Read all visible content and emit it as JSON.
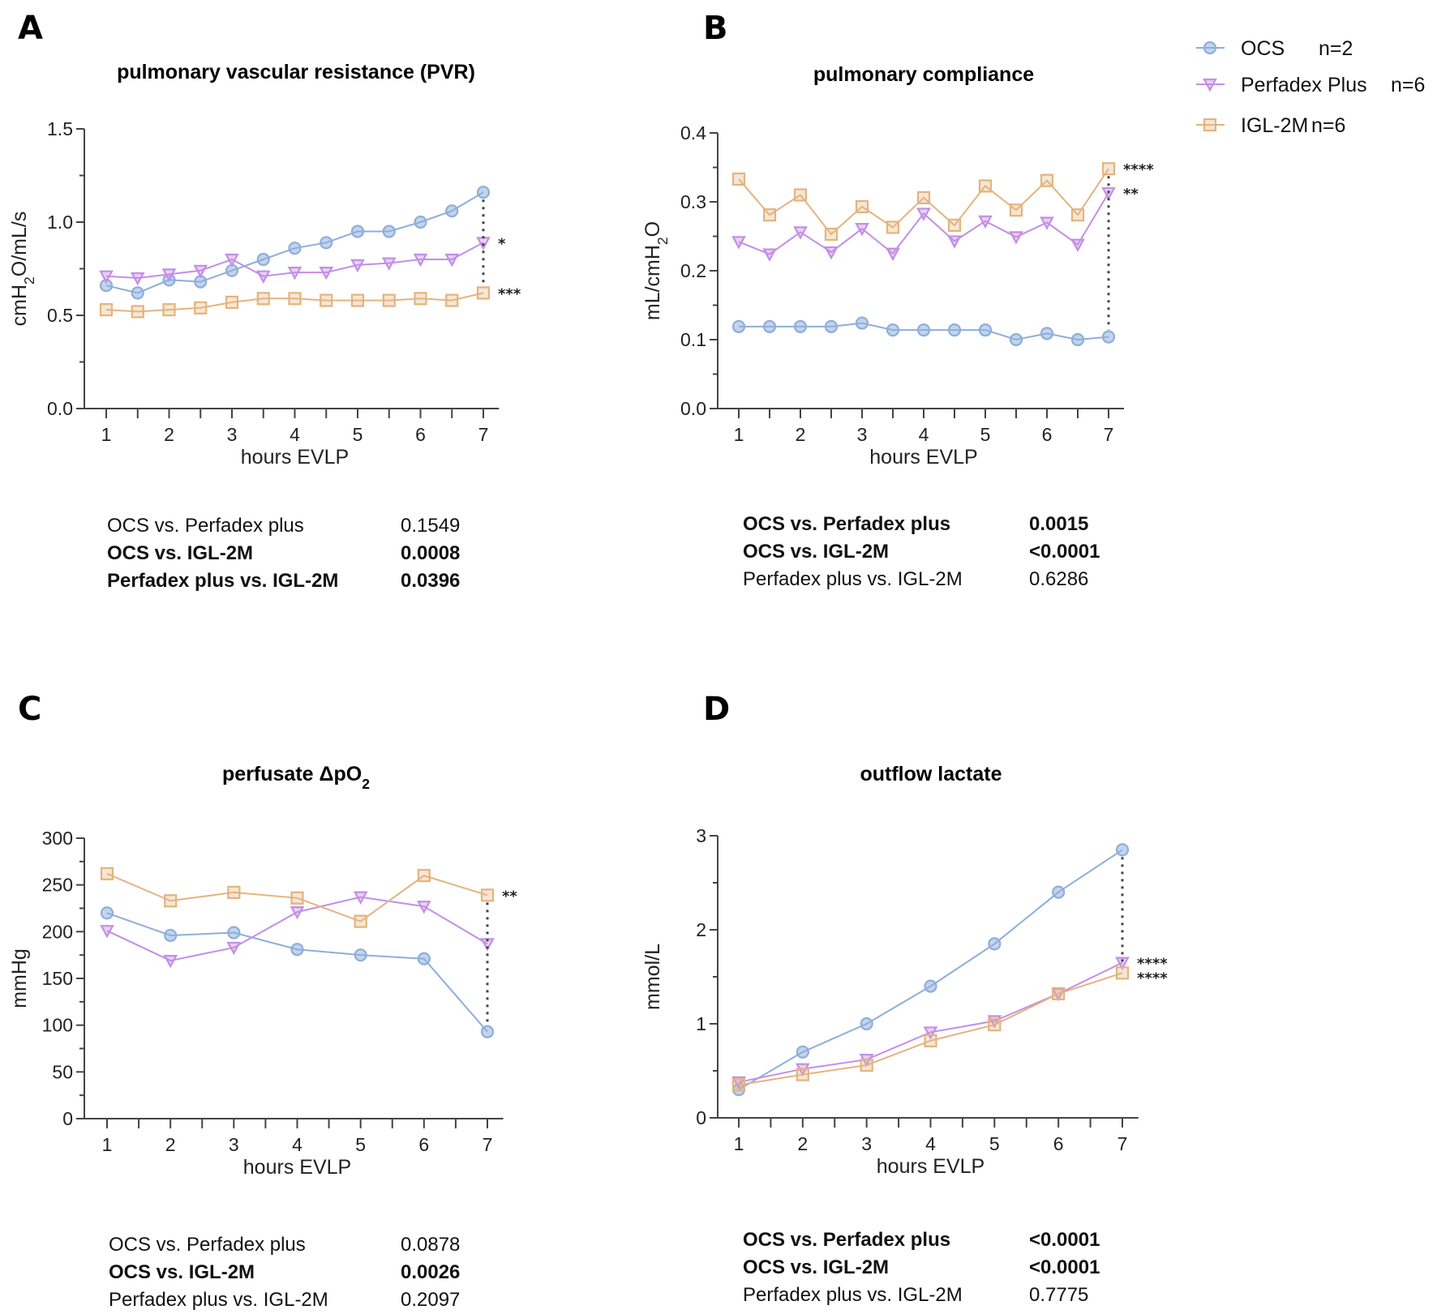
{
  "legend": [
    {
      "name": "OCS",
      "n": "n=2",
      "marker": "circle",
      "color": "#8eaedb"
    },
    {
      "name": "Perfadex Plus",
      "n": "n=6",
      "marker": "triangle-down",
      "color": "#c48ee6"
    },
    {
      "name": "IGL-2M",
      "n": "n=6",
      "marker": "square",
      "color": "#e3b47f"
    }
  ],
  "chart_data": [
    {
      "panel": "A",
      "type": "line",
      "title": "pulmonary vascular resistance (PVR)",
      "xlabel": "hours EVLP",
      "ylabel": "cmH2O/mL/s",
      "ylim": [
        0,
        1.5
      ],
      "yticks": [
        "0.0",
        "0.5",
        "1.0",
        "1.5"
      ],
      "yticks_values": [
        0,
        0.5,
        1.0,
        1.5
      ],
      "xlim": [
        0.75,
        7.25
      ],
      "xticks": [
        "1",
        "2",
        "3",
        "4",
        "5",
        "6",
        "7"
      ],
      "x": [
        1,
        1.5,
        2,
        2.5,
        3,
        3.5,
        4,
        4.5,
        5,
        5.5,
        6,
        6.5,
        7
      ],
      "series": [
        {
          "name": "OCS",
          "values": [
            0.66,
            0.62,
            0.69,
            0.68,
            0.74,
            0.8,
            0.86,
            0.89,
            0.95,
            0.95,
            1.0,
            1.06,
            1.16
          ]
        },
        {
          "name": "Perfadex Plus",
          "values": [
            0.71,
            0.7,
            0.72,
            0.74,
            0.8,
            0.71,
            0.73,
            0.73,
            0.77,
            0.78,
            0.8,
            0.8,
            0.89
          ]
        },
        {
          "name": "IGL-2M",
          "values": [
            0.53,
            0.52,
            0.53,
            0.54,
            0.57,
            0.59,
            0.59,
            0.58,
            0.58,
            0.58,
            0.59,
            0.58,
            0.62
          ]
        }
      ],
      "significance": [
        {
          "series": "Perfadex Plus",
          "label": "*"
        },
        {
          "series": "IGL-2M",
          "label": "***"
        }
      ],
      "stats": [
        {
          "comparison": "OCS vs. Perfadex plus",
          "p": "0.1549",
          "bold": false
        },
        {
          "comparison": "OCS vs. IGL-2M",
          "p": "0.0008",
          "bold": true
        },
        {
          "comparison": "Perfadex plus vs. IGL-2M",
          "p": "0.0396",
          "bold": true
        }
      ]
    },
    {
      "panel": "B",
      "type": "line",
      "title": "pulmonary compliance",
      "xlabel": "hours EVLP",
      "ylabel": "mL/cmH2O",
      "ylim": [
        0,
        0.4
      ],
      "yticks": [
        "0.0",
        "0.1",
        "0.2",
        "0.3",
        "0.4"
      ],
      "yticks_values": [
        0,
        0.1,
        0.2,
        0.3,
        0.4
      ],
      "xlim": [
        0.75,
        7.25
      ],
      "xticks": [
        "1",
        "2",
        "3",
        "4",
        "5",
        "6",
        "7"
      ],
      "x": [
        1,
        1.5,
        2,
        2.5,
        3,
        3.5,
        4,
        4.5,
        5,
        5.5,
        6,
        6.5,
        7
      ],
      "series": [
        {
          "name": "OCS",
          "values": [
            0.119,
            0.119,
            0.119,
            0.119,
            0.124,
            0.114,
            0.114,
            0.114,
            0.114,
            0.1,
            0.109,
            0.1,
            0.104
          ]
        },
        {
          "name": "Perfadex Plus",
          "values": [
            0.242,
            0.224,
            0.256,
            0.227,
            0.261,
            0.225,
            0.283,
            0.243,
            0.272,
            0.249,
            0.27,
            0.238,
            0.313
          ]
        },
        {
          "name": "IGL-2M",
          "values": [
            0.333,
            0.281,
            0.31,
            0.253,
            0.293,
            0.263,
            0.306,
            0.266,
            0.323,
            0.288,
            0.331,
            0.281,
            0.348
          ]
        }
      ],
      "significance": [
        {
          "series": "IGL-2M",
          "label": "****"
        },
        {
          "series": "Perfadex Plus",
          "label": "**"
        }
      ],
      "stats": [
        {
          "comparison": "OCS vs. Perfadex plus",
          "p": "0.0015",
          "bold": true
        },
        {
          "comparison": "OCS vs. IGL-2M",
          "p": "<0.0001",
          "bold": true
        },
        {
          "comparison": "Perfadex plus vs. IGL-2M",
          "p": "0.6286",
          "bold": false
        }
      ]
    },
    {
      "panel": "C",
      "type": "line",
      "title": "perfusate ΔpO2",
      "xlabel": "hours EVLP",
      "ylabel": "mmHg",
      "ylim": [
        0,
        300
      ],
      "yticks": [
        "0",
        "50",
        "100",
        "150",
        "200",
        "250",
        "300"
      ],
      "yticks_values": [
        0,
        50,
        100,
        150,
        200,
        250,
        300
      ],
      "xlim": [
        0.75,
        7.25
      ],
      "xticks": [
        "1",
        "2",
        "3",
        "4",
        "5",
        "6",
        "7"
      ],
      "x": [
        1,
        2,
        3,
        4,
        5,
        6,
        7
      ],
      "series": [
        {
          "name": "OCS",
          "values": [
            220,
            196,
            199,
            181,
            175,
            171,
            93
          ]
        },
        {
          "name": "Perfadex Plus",
          "values": [
            201,
            169,
            183,
            221,
            237,
            227,
            187
          ]
        },
        {
          "name": "IGL-2M",
          "values": [
            262,
            233,
            242,
            236,
            211,
            260,
            239
          ]
        }
      ],
      "significance": [
        {
          "series": "IGL-2M",
          "label": "**"
        }
      ],
      "stats": [
        {
          "comparison": "OCS vs. Perfadex plus",
          "p": "0.0878",
          "bold": false
        },
        {
          "comparison": "OCS vs. IGL-2M",
          "p": "0.0026",
          "bold": true
        },
        {
          "comparison": "Perfadex plus vs. IGL-2M",
          "p": "0.2097",
          "bold": false
        }
      ]
    },
    {
      "panel": "D",
      "type": "line",
      "title": "outflow lactate",
      "xlabel": "hours EVLP",
      "ylabel": "mmol/L",
      "ylim": [
        0,
        3
      ],
      "yticks": [
        "0",
        "1",
        "2",
        "3"
      ],
      "yticks_values": [
        0,
        1,
        2,
        3
      ],
      "xlim": [
        0.75,
        7.25
      ],
      "xticks": [
        "1",
        "2",
        "3",
        "4",
        "5",
        "6",
        "7"
      ],
      "x": [
        1,
        2,
        3,
        4,
        5,
        6,
        7
      ],
      "series": [
        {
          "name": "OCS",
          "values": [
            0.3,
            0.7,
            1.0,
            1.4,
            1.85,
            2.4,
            2.85
          ]
        },
        {
          "name": "Perfadex Plus",
          "values": [
            0.38,
            0.52,
            0.62,
            0.91,
            1.03,
            1.32,
            1.65
          ]
        },
        {
          "name": "IGL-2M",
          "values": [
            0.35,
            0.46,
            0.56,
            0.82,
            0.99,
            1.32,
            1.54
          ]
        }
      ],
      "significance": [
        {
          "series": "Perfadex Plus",
          "label": "****"
        },
        {
          "series": "IGL-2M",
          "label": "****"
        }
      ],
      "stats": [
        {
          "comparison": "OCS vs. Perfadex plus",
          "p": "<0.0001",
          "bold": true
        },
        {
          "comparison": "OCS vs. IGL-2M",
          "p": "<0.0001",
          "bold": true
        },
        {
          "comparison": "Perfadex plus vs. IGL-2M",
          "p": "0.7775",
          "bold": false
        }
      ]
    }
  ]
}
